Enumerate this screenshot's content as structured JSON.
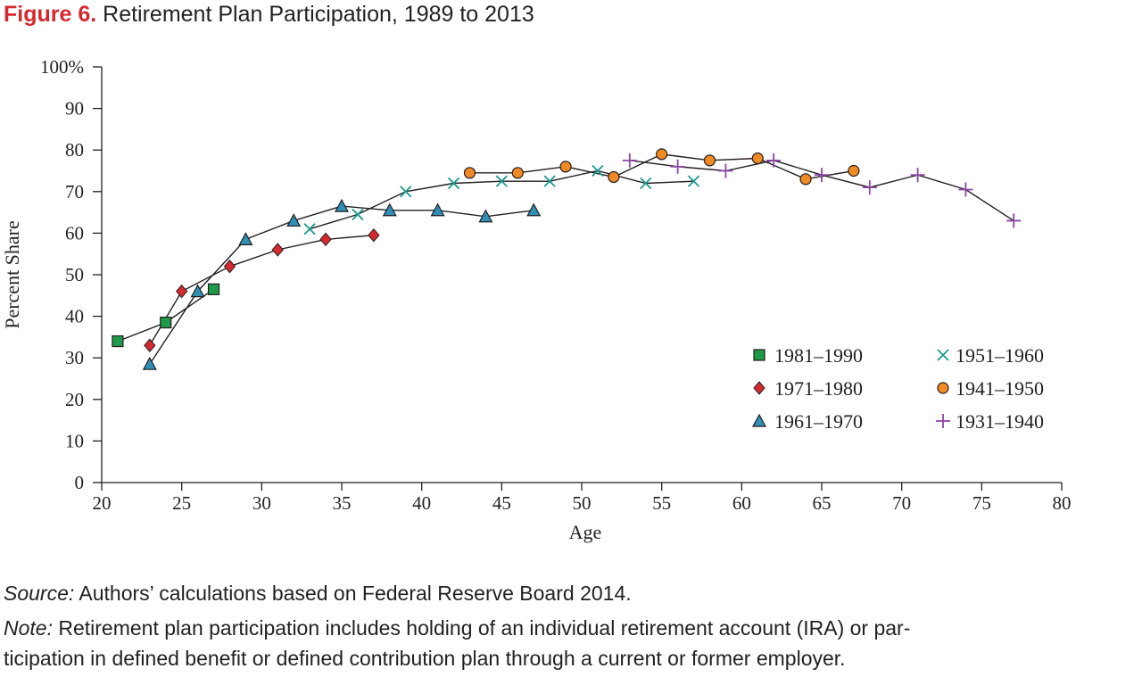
{
  "figure": {
    "label": "Figure 6.",
    "title": "Retirement Plan Participation, 1989 to 2013"
  },
  "chart_data": {
    "type": "line",
    "title": "Retirement Plan Participation, 1989 to 2013",
    "xlabel": "Age",
    "ylabel": "Percent Share",
    "xlim": [
      20,
      80
    ],
    "ylim": [
      0,
      100
    ],
    "x_ticks": [
      20,
      25,
      30,
      35,
      40,
      45,
      50,
      55,
      60,
      65,
      70,
      75,
      80
    ],
    "y_ticks": [
      0,
      10,
      20,
      30,
      40,
      50,
      60,
      70,
      80,
      90,
      100
    ],
    "y_tick_labels": [
      "0",
      "10",
      "20",
      "30",
      "40",
      "50",
      "60",
      "70",
      "80",
      "90",
      "100%"
    ],
    "grid": false,
    "legend_position": "lower-right",
    "series": [
      {
        "name": "1981–1990",
        "marker": "square",
        "color": "#1e9a48",
        "x": [
          21,
          24,
          27
        ],
        "y": [
          34,
          38.5,
          46.5
        ]
      },
      {
        "name": "1971–1980",
        "marker": "diamond",
        "color": "#d6282f",
        "x": [
          23,
          25,
          28,
          31,
          34,
          37
        ],
        "y": [
          33,
          46,
          52,
          56,
          58.5,
          59.5
        ]
      },
      {
        "name": "1961–1970",
        "marker": "triangle",
        "color": "#2f8fb5",
        "x": [
          23,
          26,
          29,
          32,
          35,
          38,
          41,
          44,
          47
        ],
        "y": [
          28.5,
          46,
          58.5,
          63,
          66.5,
          65.5,
          65.5,
          64,
          65.5
        ]
      },
      {
        "name": "1951–1960",
        "marker": "x",
        "color": "#1a9b8c",
        "x": [
          33,
          36,
          39,
          42,
          45,
          48,
          51,
          54,
          57
        ],
        "y": [
          61,
          64.5,
          70,
          72,
          72.5,
          72.5,
          75,
          72,
          72.5
        ]
      },
      {
        "name": "1941–1950",
        "marker": "circle",
        "color": "#f08a24",
        "x": [
          43,
          46,
          49,
          52,
          55,
          58,
          61,
          64,
          67
        ],
        "y": [
          74.5,
          74.5,
          76,
          73.5,
          79,
          77.5,
          78,
          73,
          75
        ]
      },
      {
        "name": "1931–1940",
        "marker": "plus",
        "color": "#8e44a8",
        "x": [
          53,
          56,
          59,
          62,
          65,
          68,
          71,
          74,
          77
        ],
        "y": [
          77.5,
          76,
          75,
          77.5,
          74,
          71,
          74,
          70.5,
          63
        ]
      }
    ]
  },
  "notes": {
    "source_lead": "Source:",
    "source_text": " Authors’ calculations based on Federal Reserve Board 2014.",
    "note_lead": "Note:",
    "note_text_line1": " Retirement plan participation includes holding of an individual retirement account (IRA) or par-",
    "note_text_line2": "ticipation in defined benefit or defined contribution plan through a current or former employer."
  }
}
